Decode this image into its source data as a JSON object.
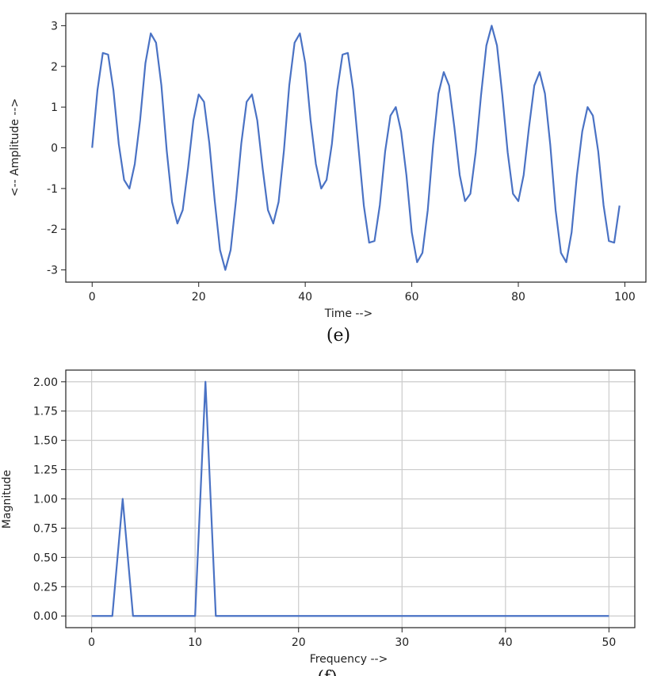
{
  "colors": {
    "line": "#4a72c4",
    "grid": "#cccccc",
    "axis": "#222222"
  },
  "chart_data": [
    {
      "type": "line",
      "caption": "(e)",
      "xlabel": "Time -->",
      "ylabel": "<-- Amplitude -->",
      "xlim": [
        -4.95,
        103.95
      ],
      "ylim": [
        -3.3,
        3.3
      ],
      "xticks": [
        0,
        20,
        40,
        60,
        80,
        100
      ],
      "yticks": [
        -3,
        -2,
        -1,
        0,
        1,
        2,
        3
      ],
      "grid": false,
      "series": [
        {
          "x": [
            0,
            1,
            2,
            3,
            4,
            5,
            6,
            7,
            8,
            9,
            10,
            11,
            12,
            13,
            14,
            15,
            16,
            17,
            18,
            19,
            20,
            21,
            22,
            23,
            24,
            25,
            26,
            27,
            28,
            29,
            30,
            31,
            32,
            33,
            34,
            35,
            36,
            37,
            38,
            39,
            40,
            41,
            42,
            43,
            44,
            45,
            46,
            47,
            48,
            49,
            50,
            51,
            52,
            53,
            54,
            55,
            56,
            57,
            58,
            59,
            60,
            61,
            62,
            63,
            64,
            65,
            66,
            67,
            68,
            69,
            70,
            71,
            72,
            73,
            74,
            75,
            76,
            77,
            78,
            79,
            80,
            81,
            82,
            83,
            84,
            85,
            86,
            87,
            88,
            89,
            90,
            91,
            92,
            93,
            94,
            95,
            96,
            97,
            98,
            99
          ],
          "y": [
            0.0,
            1.42,
            2.33,
            2.29,
            1.41,
            0.09,
            -0.79,
            -1.0,
            -0.4,
            0.68,
            2.08,
            2.81,
            2.58,
            1.53,
            -0.07,
            -1.33,
            -1.86,
            -1.53,
            -0.5,
            0.67,
            1.31,
            1.13,
            0.11,
            -1.29,
            -2.51,
            -3.0,
            -2.51,
            -1.29,
            0.11,
            1.13,
            1.31,
            0.67,
            -0.5,
            -1.53,
            -1.86,
            -1.33,
            -0.07,
            1.53,
            2.58,
            2.81,
            2.08,
            0.68,
            -0.4,
            -1.0,
            -0.79,
            0.09,
            1.41,
            2.29,
            2.33,
            1.42,
            0.0,
            -1.42,
            -2.33,
            -2.29,
            -1.41,
            -0.09,
            0.79,
            1.0,
            0.4,
            -0.68,
            -2.08,
            -2.81,
            -2.58,
            -1.53,
            0.07,
            1.33,
            1.86,
            1.53,
            0.5,
            -0.67,
            -1.31,
            -1.13,
            -0.11,
            1.29,
            2.51,
            3.0,
            2.51,
            1.29,
            -0.11,
            -1.13,
            -1.31,
            -0.67,
            0.5,
            1.53,
            1.86,
            1.33,
            0.07,
            -1.53,
            -2.58,
            -2.81,
            -2.08,
            -0.68,
            0.4,
            1.0,
            0.79,
            -0.09,
            -1.41,
            -2.29,
            -2.33,
            -1.42
          ]
        }
      ]
    },
    {
      "type": "line",
      "caption": "(f)",
      "xlabel": "Frequency -->",
      "ylabel": "Magnitude",
      "xlim": [
        -2.5,
        52.5
      ],
      "ylim": [
        -0.1,
        2.1
      ],
      "xticks": [
        0,
        10,
        20,
        30,
        40,
        50
      ],
      "yticks": [
        "0.00",
        "0.25",
        "0.50",
        "0.75",
        "1.00",
        "1.25",
        "1.50",
        "1.75",
        "2.00"
      ],
      "grid": true,
      "series": [
        {
          "x": [
            0,
            2,
            3,
            4,
            10,
            11,
            12,
            50
          ],
          "y": [
            0,
            0,
            1,
            0,
            0,
            2,
            0,
            0
          ]
        }
      ]
    }
  ]
}
